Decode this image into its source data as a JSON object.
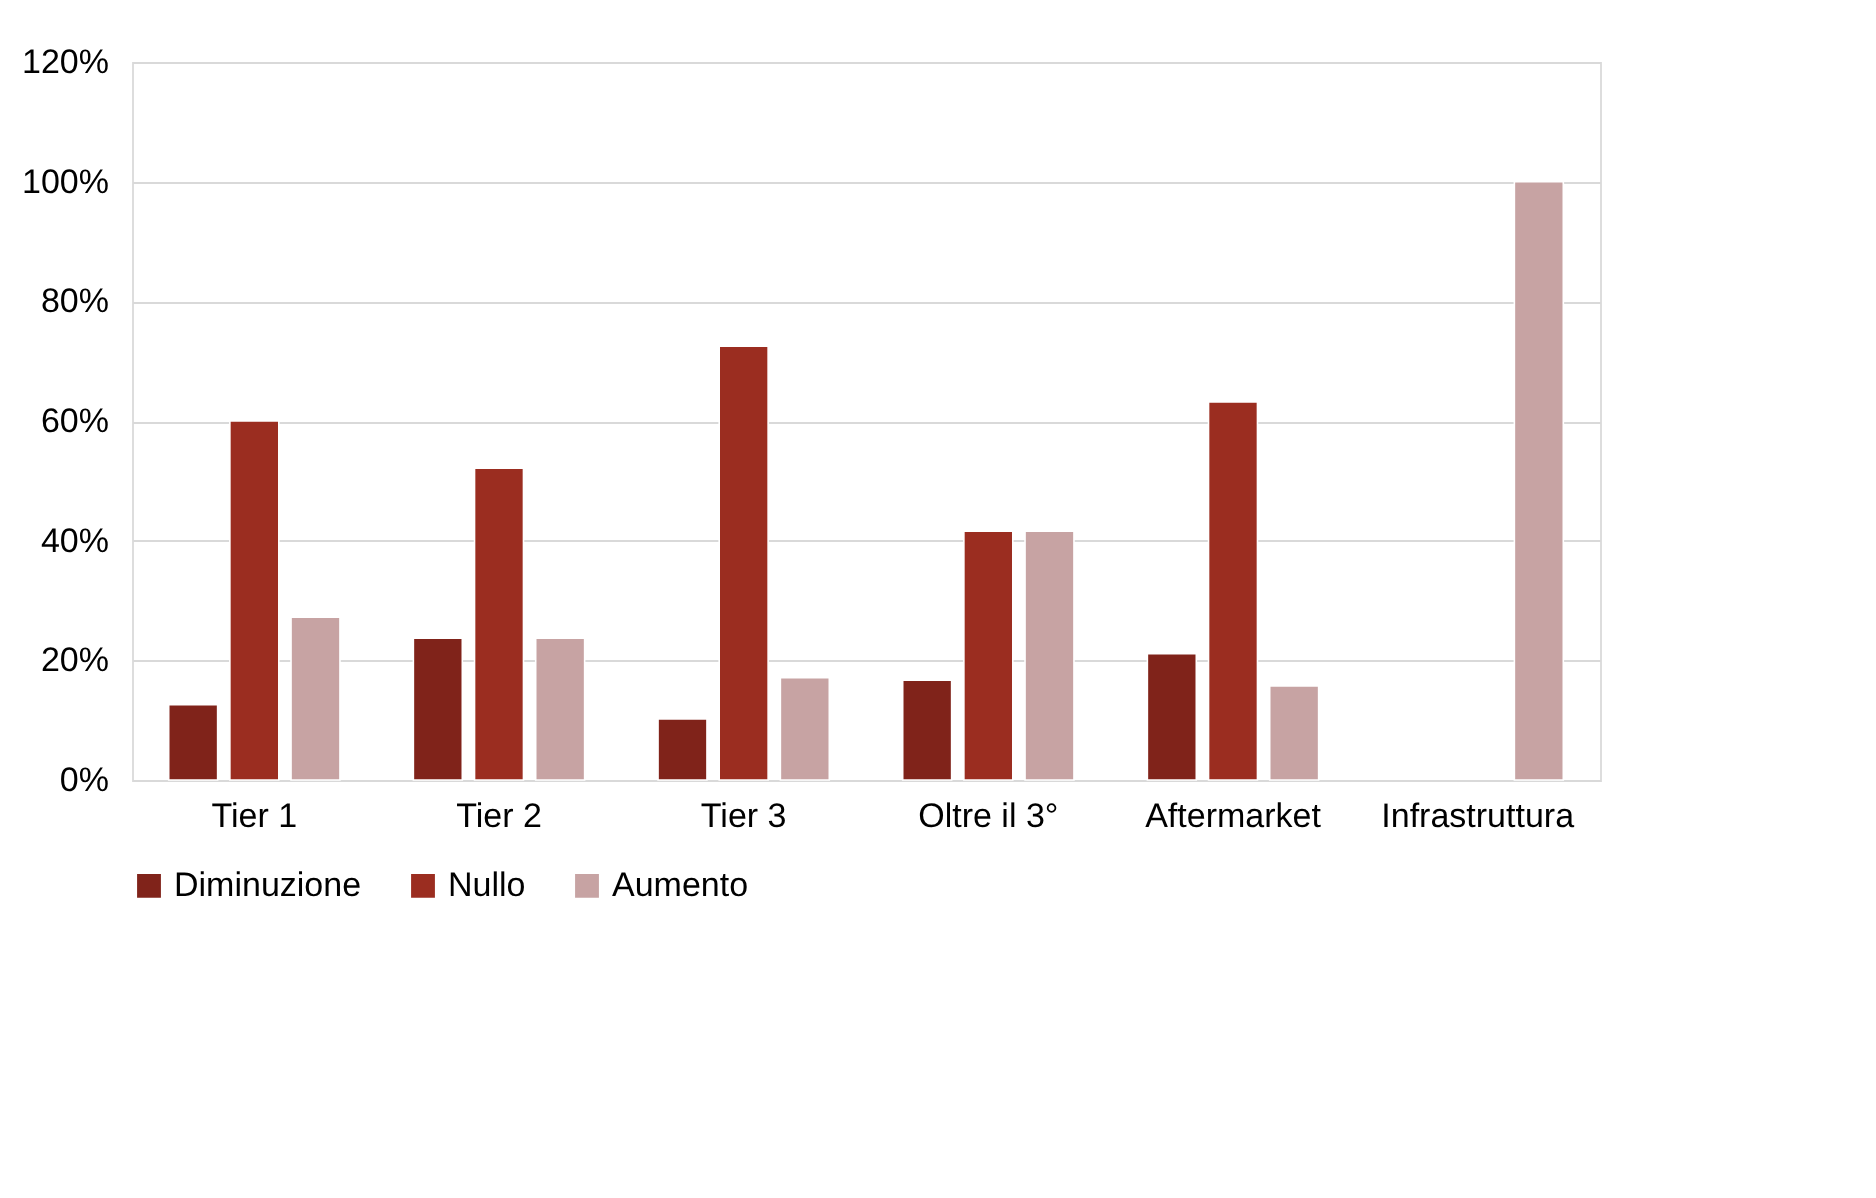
{
  "chart_data": {
    "type": "bar",
    "categories": [
      "Tier 1",
      "Tier 2",
      "Tier 3",
      "Oltre il 3°",
      "Aftermarket",
      "Infrastruttura"
    ],
    "series": [
      {
        "name": "Diminuzione",
        "color": "#80231a",
        "values": [
          12.6,
          23.7,
          10.2,
          16.7,
          21.1,
          null
        ]
      },
      {
        "name": "Nullo",
        "color": "#9b2d20",
        "values": [
          60.0,
          52.1,
          72.5,
          41.6,
          63.2,
          null
        ]
      },
      {
        "name": "Aumento",
        "color": "#c7a3a3",
        "values": [
          27.2,
          23.7,
          17.1,
          41.6,
          15.7,
          100
        ]
      }
    ],
    "ylim": [
      0,
      120
    ],
    "yticks": [
      {
        "value": 0,
        "label": "0%"
      },
      {
        "value": 20,
        "label": "20%"
      },
      {
        "value": 40,
        "label": "40%"
      },
      {
        "value": 60,
        "label": "60%"
      },
      {
        "value": 80,
        "label": "80%"
      },
      {
        "value": 100,
        "label": "100%"
      },
      {
        "value": 120,
        "label": "120%"
      }
    ],
    "grid": "y",
    "legend": "bottom"
  }
}
